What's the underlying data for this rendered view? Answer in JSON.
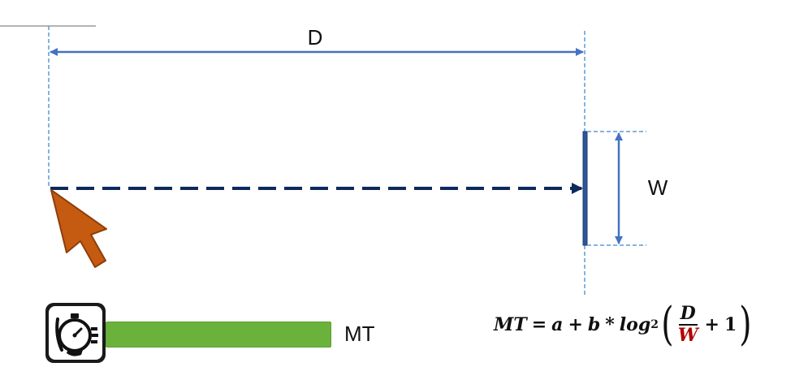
{
  "labels": {
    "distance": "D",
    "width": "W",
    "movement_time": "MT"
  },
  "formula": {
    "lhs": "MT",
    "equals": "=",
    "a": "a",
    "plus1": "+",
    "b": "b",
    "times": "*",
    "log": "log",
    "log_base": "2",
    "numerator": "D",
    "denominator": "W",
    "plus2": "+",
    "one": "1"
  },
  "colors": {
    "guide_blue": "#5b9bd5",
    "arrow_blue": "#4472c4",
    "path_navy": "#0d2a5c",
    "cursor_orange": "#c55a11",
    "mt_bar_green": "#6bb23d",
    "denominator_red": "#b20000"
  },
  "icons": {
    "cursor": "mouse-pointer-icon",
    "stopwatch": "stopwatch-icon"
  }
}
